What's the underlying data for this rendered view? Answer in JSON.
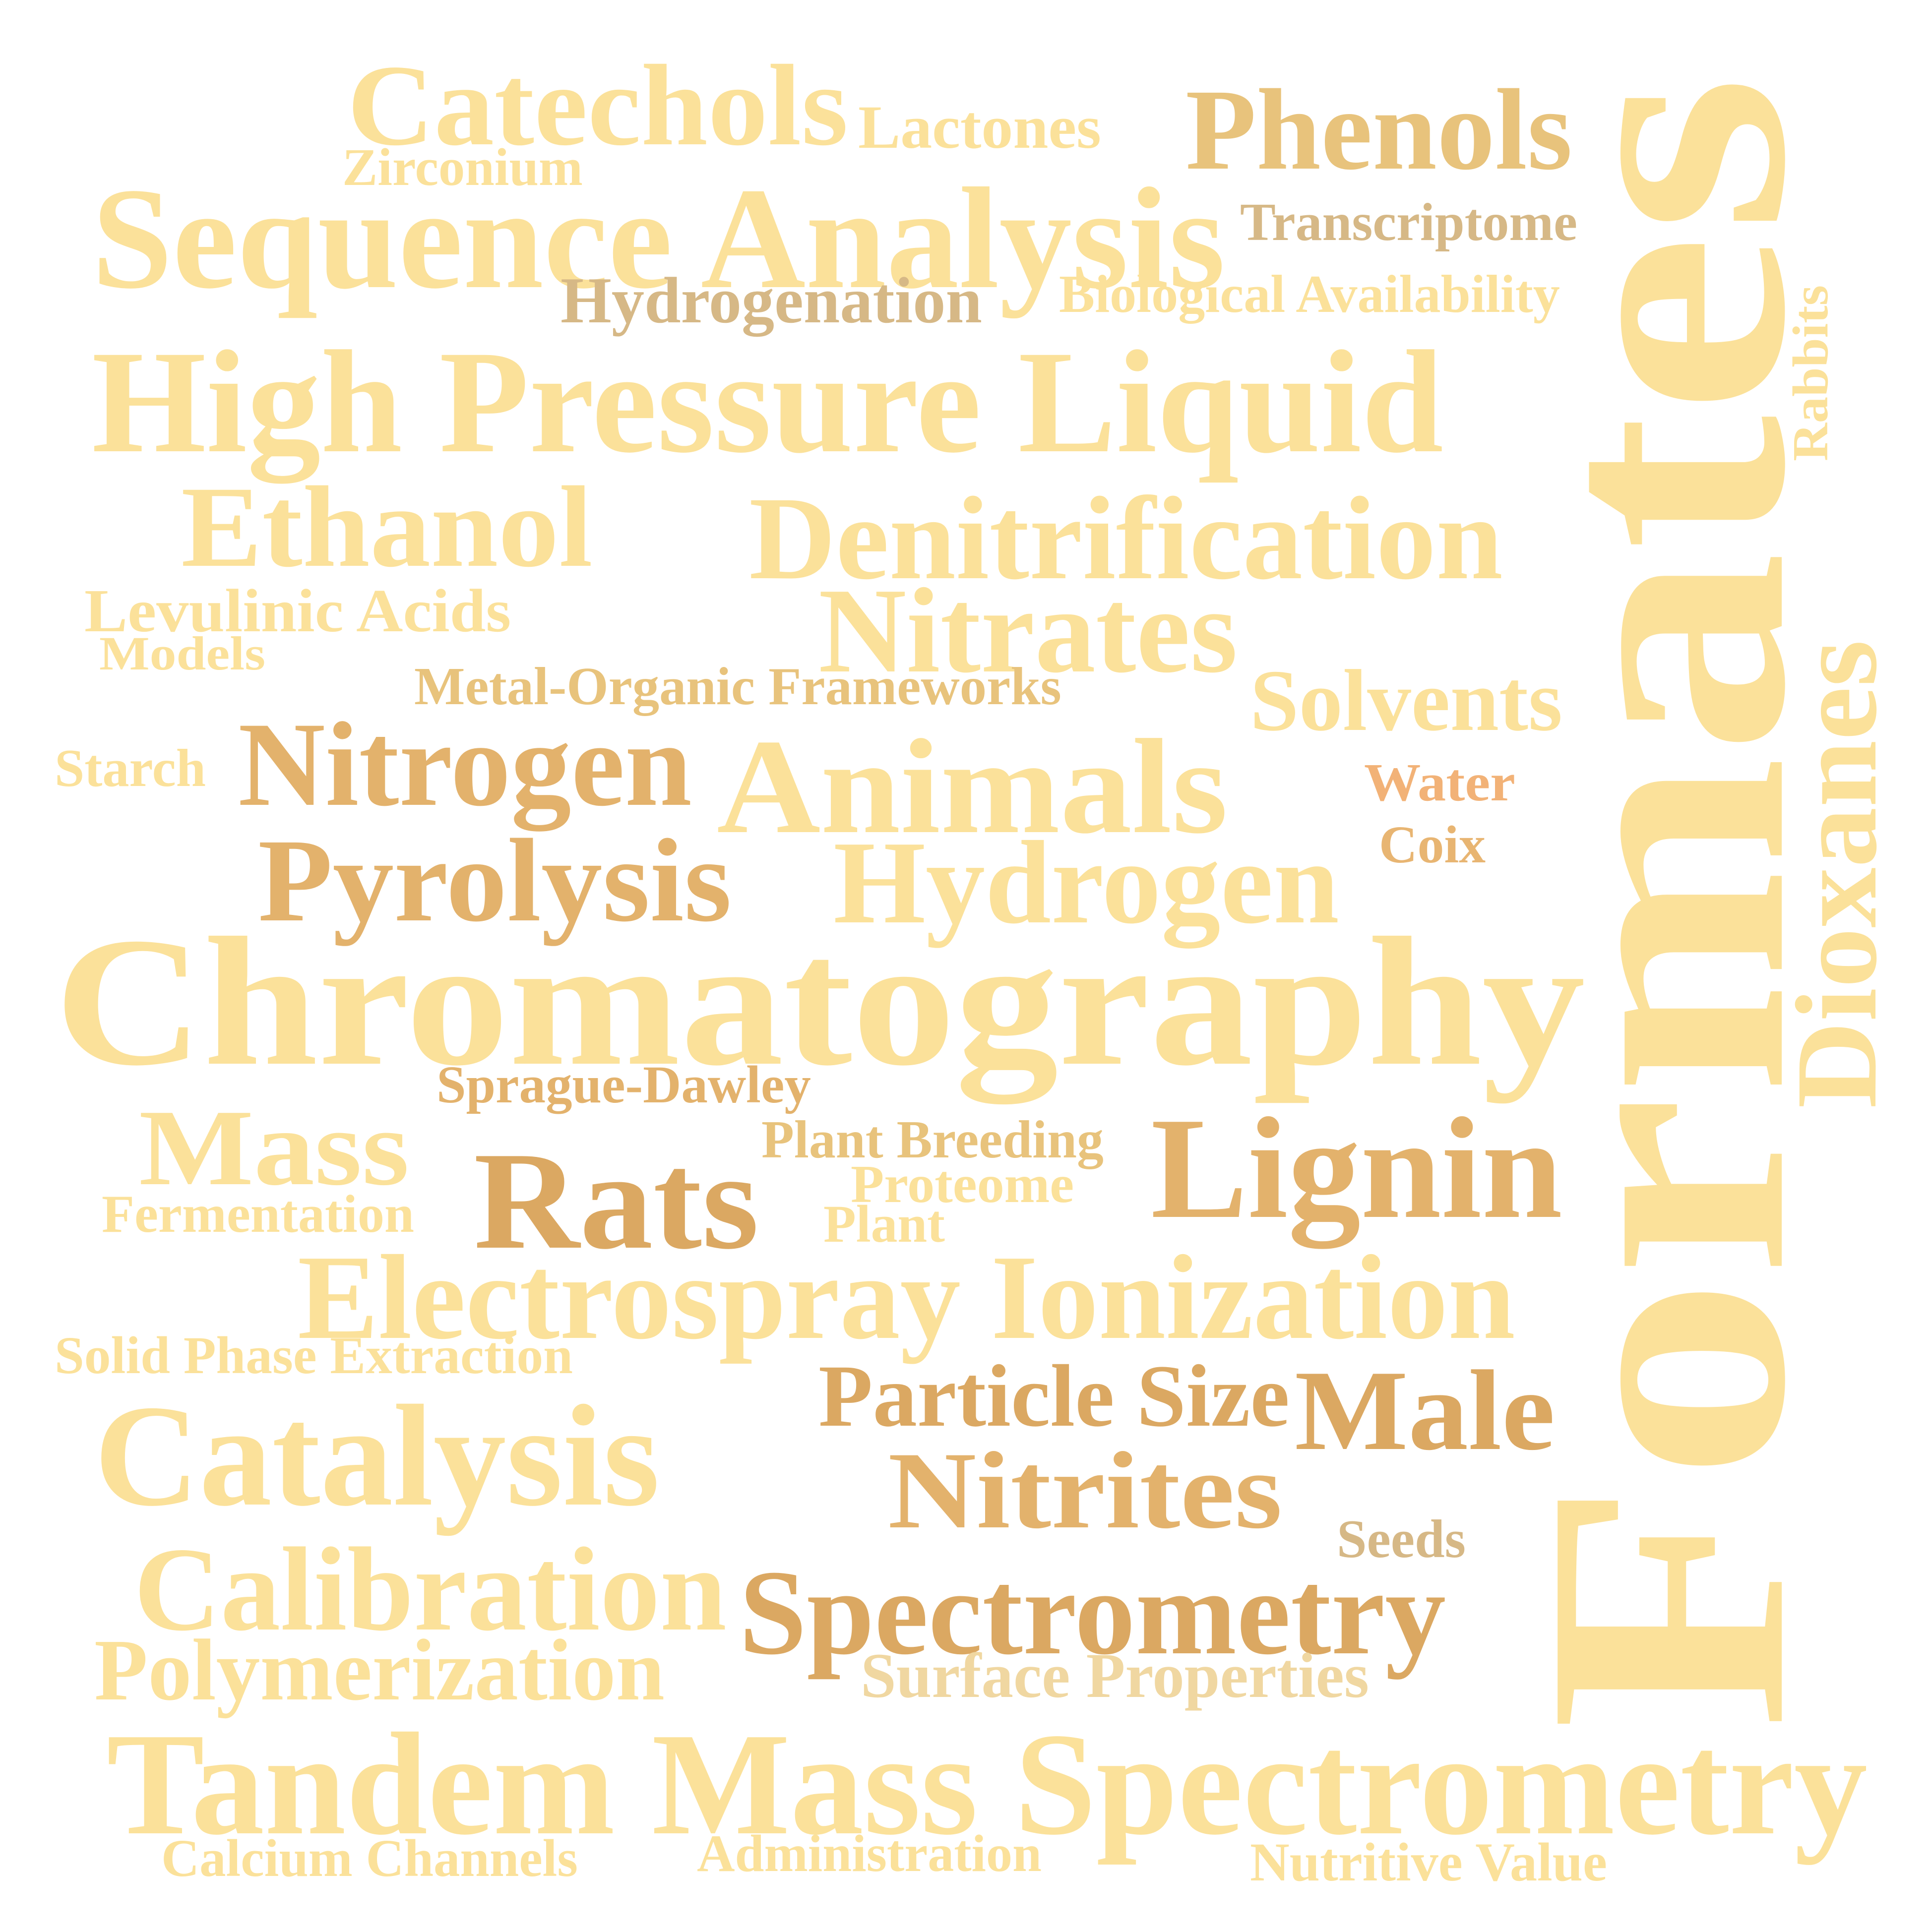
{
  "word_cloud": {
    "words": [
      {
        "text": "Catechols",
        "color": "#fbe19a"
      },
      {
        "text": "Lactones",
        "color": "#fbe19a"
      },
      {
        "text": "Zirconium",
        "color": "#fbe19a"
      },
      {
        "text": "Phenols",
        "color": "#e8c37c"
      },
      {
        "text": "Sequence Analysis",
        "color": "#fbe19a"
      },
      {
        "text": "Transcriptome",
        "color": "#d6b886"
      },
      {
        "text": "Hydrogenation",
        "color": "#d6b886"
      },
      {
        "text": "Biological Availability",
        "color": "#fbe19a"
      },
      {
        "text": "High Pressure Liquid",
        "color": "#fbe19a"
      },
      {
        "text": "Rabbits",
        "color": "#fbe19a"
      },
      {
        "text": "Ethanol",
        "color": "#fbe19a"
      },
      {
        "text": "Denitrification",
        "color": "#fbe19a"
      },
      {
        "text": "Levulinic Acids",
        "color": "#fbe19a"
      },
      {
        "text": "Models",
        "color": "#fbe19a"
      },
      {
        "text": "Nitrates",
        "color": "#fbe19a"
      },
      {
        "text": "Metal-Organic Frameworks",
        "color": "#e8c37c"
      },
      {
        "text": "Solvents",
        "color": "#fbe19a"
      },
      {
        "text": "Starch",
        "color": "#fbe19a"
      },
      {
        "text": "Nitrogen",
        "color": "#e3b26c"
      },
      {
        "text": "Animals",
        "color": "#fbe19a"
      },
      {
        "text": "Water",
        "color": "#f2b277"
      },
      {
        "text": "Coix",
        "color": "#e8b572"
      },
      {
        "text": "Pyrolysis",
        "color": "#e3b26c"
      },
      {
        "text": "Hydrogen",
        "color": "#fbe19a"
      },
      {
        "text": "Chromatography",
        "color": "#fbe19a"
      },
      {
        "text": "Formates",
        "color": "#fbe19a"
      },
      {
        "text": "Dioxanes",
        "color": "#fbe19a"
      },
      {
        "text": "Sprague-Dawley",
        "color": "#e3b26c"
      },
      {
        "text": "Mass",
        "color": "#fbe19a"
      },
      {
        "text": "Rats",
        "color": "#dba862"
      },
      {
        "text": "Plant Breeding",
        "color": "#e8c37c"
      },
      {
        "text": "Proteome",
        "color": "#fbe19a"
      },
      {
        "text": "Plant",
        "color": "#fbe19a"
      },
      {
        "text": "Lignin",
        "color": "#e3b26c"
      },
      {
        "text": "Fermentation",
        "color": "#fbe19a"
      },
      {
        "text": "Electrospray Ionization",
        "color": "#fbe19a"
      },
      {
        "text": "Solid Phase Extraction",
        "color": "#fbe19a"
      },
      {
        "text": "Particle Size",
        "color": "#dba862"
      },
      {
        "text": "Male",
        "color": "#dba862"
      },
      {
        "text": "Catalysis",
        "color": "#fbe19a"
      },
      {
        "text": "Nitrites",
        "color": "#e3b26c"
      },
      {
        "text": "Seeds",
        "color": "#d6b886"
      },
      {
        "text": "Calibration",
        "color": "#fbe19a"
      },
      {
        "text": "Spectrometry",
        "color": "#dba862"
      },
      {
        "text": "Polymerization",
        "color": "#fbe19a"
      },
      {
        "text": "Surface Properties",
        "color": "#f0d7a1"
      },
      {
        "text": "Tandem Mass Spectrometry",
        "color": "#fbe19a"
      },
      {
        "text": "Calcium Channels",
        "color": "#fbe19a"
      },
      {
        "text": "Administration",
        "color": "#fbe19a"
      },
      {
        "text": "Nutritive Value",
        "color": "#fbe19a"
      }
    ]
  }
}
